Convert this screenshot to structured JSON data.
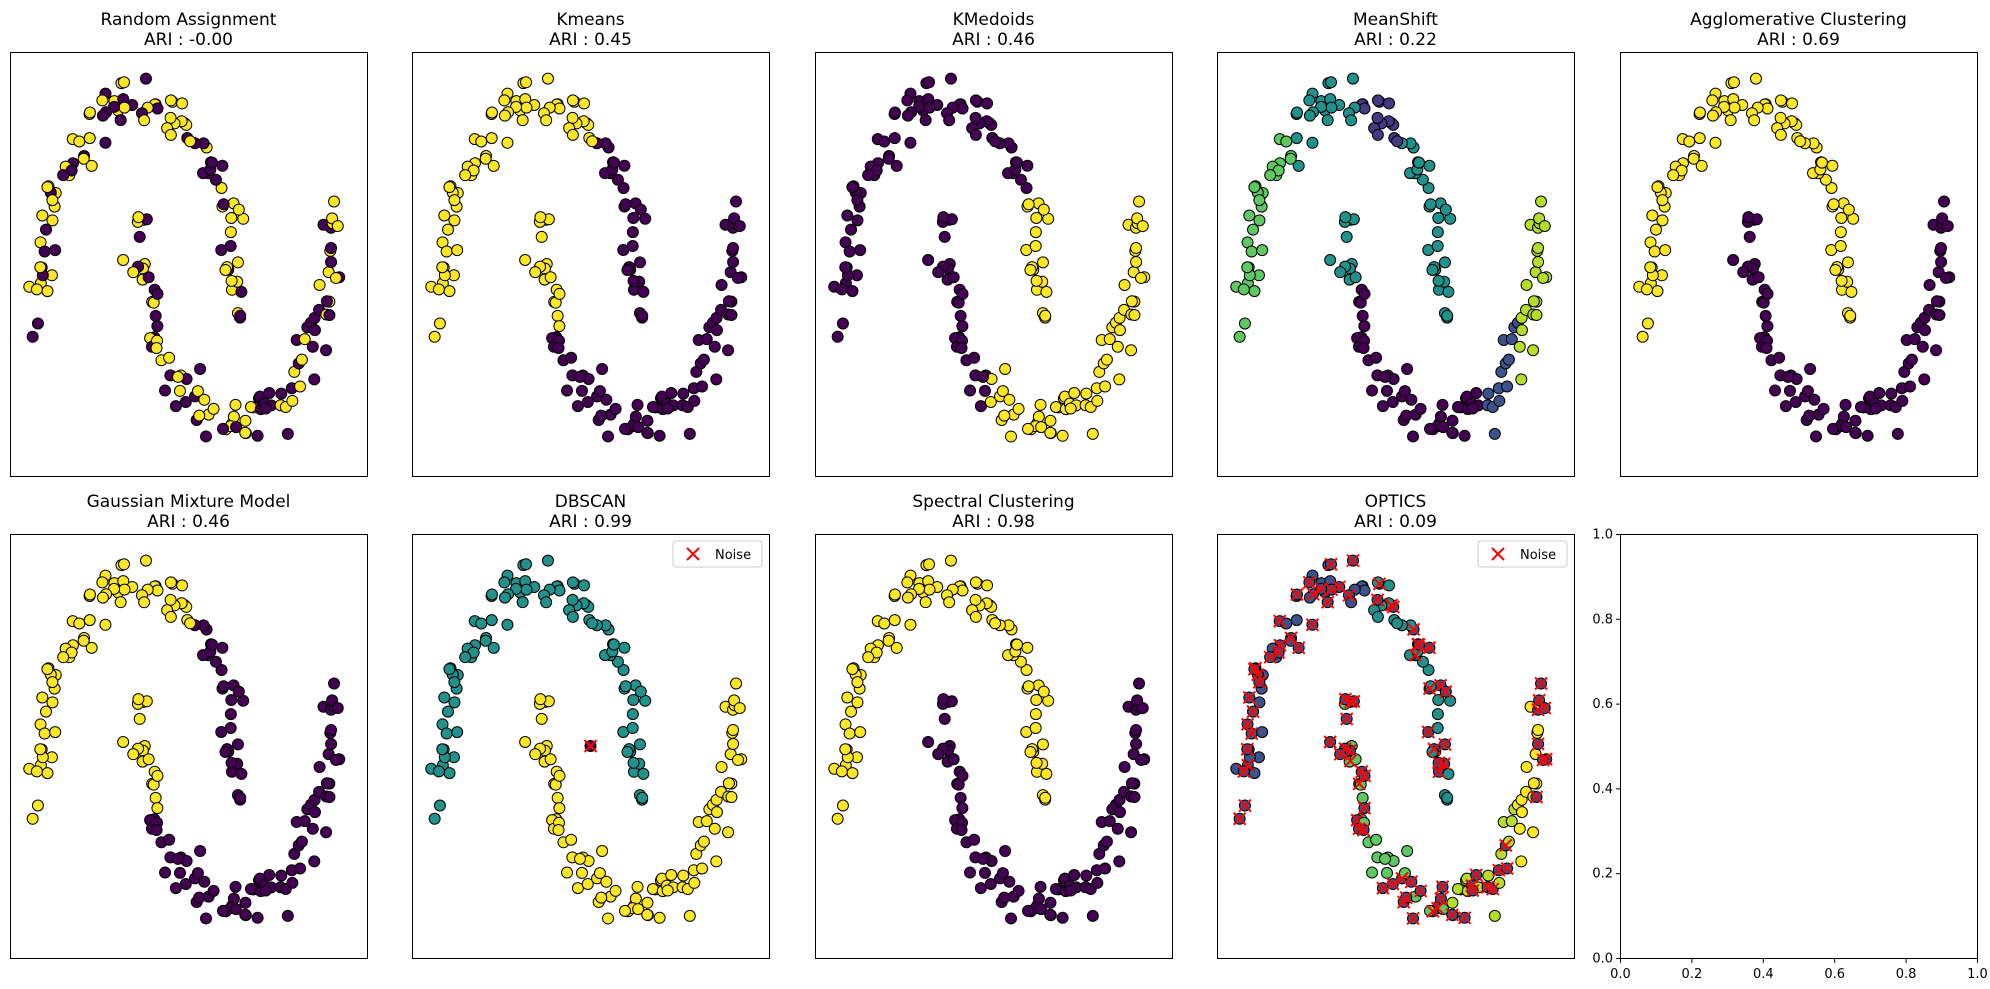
{
  "figure": {
    "background": "#ffffff",
    "marker_edge_color": "#000000",
    "noise_color": "#ff0000"
  },
  "chart_data": [
    {
      "type": "scatter",
      "title": "Random Assignment",
      "subtitle": "ARI : -0.00",
      "xlim": [
        -1.3,
        2.3
      ],
      "ylim": [
        -0.75,
        1.25
      ],
      "colors": {
        "0": "#440154",
        "1": "#fde725"
      },
      "seed": 1,
      "label_mode": "random",
      "legend": null,
      "axes_visible": false
    },
    {
      "type": "scatter",
      "title": "Kmeans",
      "subtitle": "ARI : 0.45",
      "xlim": [
        -1.3,
        2.3
      ],
      "ylim": [
        -0.75,
        1.25
      ],
      "colors": {
        "0": "#440154",
        "1": "#fde725"
      },
      "seed": 2,
      "label_mode": "kmeans",
      "legend": null,
      "axes_visible": false
    },
    {
      "type": "scatter",
      "title": "KMedoids",
      "subtitle": "ARI : 0.46",
      "xlim": [
        -1.3,
        2.3
      ],
      "ylim": [
        -0.75,
        1.25
      ],
      "colors": {
        "0": "#440154",
        "1": "#fde725"
      },
      "seed": 3,
      "label_mode": "kmedoids",
      "legend": null,
      "axes_visible": false
    },
    {
      "type": "scatter",
      "title": "MeanShift",
      "subtitle": "ARI : 0.22",
      "xlim": [
        -1.3,
        2.3
      ],
      "ylim": [
        -0.75,
        1.25
      ],
      "colors": {
        "0": "#440154",
        "1": "#3b528b",
        "2": "#21918c",
        "3": "#5ec962",
        "4": "#b5de2b",
        "5": "#443983"
      },
      "seed": 4,
      "label_mode": "meanshift",
      "legend": null,
      "axes_visible": false
    },
    {
      "type": "scatter",
      "title": "Agglomerative Clustering",
      "subtitle": "ARI : 0.69",
      "xlim": [
        -1.3,
        2.3
      ],
      "ylim": [
        -0.75,
        1.25
      ],
      "colors": {
        "0": "#440154",
        "1": "#fde725"
      },
      "seed": 5,
      "label_mode": "agglomerative",
      "legend": null,
      "axes_visible": false
    },
    {
      "type": "scatter",
      "title": "Gaussian Mixture Model",
      "subtitle": "ARI : 0.46",
      "xlim": [
        -1.3,
        2.3
      ],
      "ylim": [
        -0.75,
        1.25
      ],
      "colors": {
        "0": "#440154",
        "1": "#fde725"
      },
      "seed": 6,
      "label_mode": "gmm",
      "legend": null,
      "axes_visible": false
    },
    {
      "type": "scatter",
      "title": "DBSCAN",
      "subtitle": "ARI : 0.99",
      "xlim": [
        -1.3,
        2.3
      ],
      "ylim": [
        -0.75,
        1.25
      ],
      "colors": {
        "0": "#21918c",
        "1": "#fde725"
      },
      "seed": 7,
      "label_mode": "dbscan",
      "legend": "Noise",
      "axes_visible": false
    },
    {
      "type": "scatter",
      "title": "Spectral Clustering",
      "subtitle": "ARI : 0.98",
      "xlim": [
        -1.3,
        2.3
      ],
      "ylim": [
        -0.75,
        1.25
      ],
      "colors": {
        "0": "#fde725",
        "1": "#440154"
      },
      "seed": 8,
      "label_mode": "spectral",
      "legend": null,
      "axes_visible": false
    },
    {
      "type": "scatter",
      "title": "OPTICS",
      "subtitle": "ARI : 0.09",
      "xlim": [
        -1.3,
        2.3
      ],
      "ylim": [
        -0.75,
        1.25
      ],
      "colors": {
        "0": "#3b528b",
        "1": "#21918c",
        "2": "#5ec962",
        "3": "#b5de2b",
        "4": "#fde725"
      },
      "seed": 9,
      "label_mode": "optics",
      "legend": "Noise",
      "axes_visible": false
    },
    {
      "type": "scatter",
      "title": "",
      "subtitle": "",
      "xlim": [
        0,
        1
      ],
      "ylim": [
        0,
        1
      ],
      "xticks": [
        "0.0",
        "0.2",
        "0.4",
        "0.6",
        "0.8",
        "1.0"
      ],
      "yticks": [
        "0.0",
        "0.2",
        "0.4",
        "0.6",
        "0.8",
        "1.0"
      ],
      "empty": true,
      "axes_visible": true
    }
  ]
}
